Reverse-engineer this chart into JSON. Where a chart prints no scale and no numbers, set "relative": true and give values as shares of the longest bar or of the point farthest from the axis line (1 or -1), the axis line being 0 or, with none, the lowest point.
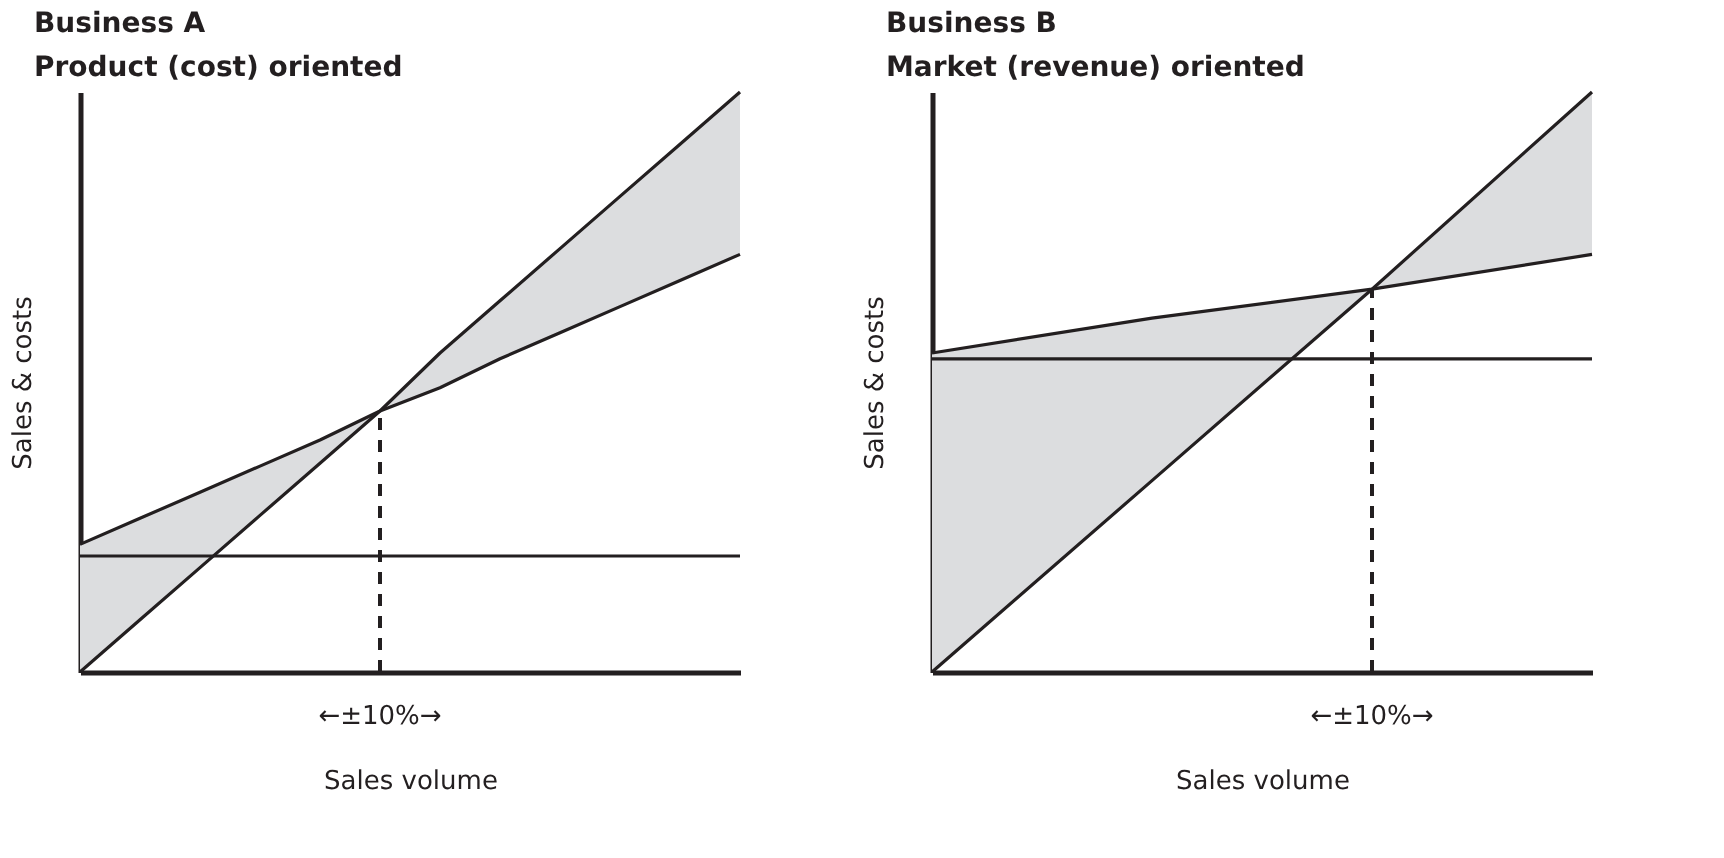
{
  "chart_data": [
    {
      "type": "line",
      "title": "Business A",
      "subtitle": "Product (cost) oriented",
      "xlabel": "Sales volume",
      "ylabel": "Sales & costs",
      "relative": true,
      "tick_labels": false,
      "annotations": [
        "←±10%→"
      ],
      "categories": [
        null,
        null,
        null,
        null,
        null,
        null,
        null,
        null,
        null,
        null,
        null,
        null
      ],
      "series": [
        {
          "color": "#231f20",
          "values": [
            0.22,
            0.265,
            0.31,
            0.355,
            0.4,
            0.45,
            0.49,
            0.54,
            0.585,
            0.63,
            0.675,
            0.72
          ],
          "lower": [
            0,
            0.09,
            0.18,
            0.27,
            0.36,
            0.45,
            0.49,
            0.54,
            0.585,
            0.63,
            0.675,
            0.72
          ],
          "upper": [
            0.22,
            0.265,
            0.31,
            0.355,
            0.4,
            0.45,
            0.55,
            0.64,
            0.73,
            0.82,
            0.91,
            1.0
          ]
        },
        {
          "color": "#231f20",
          "values": [
            0,
            0.09,
            0.18,
            0.27,
            0.36,
            0.45,
            0.55,
            0.64,
            0.73,
            0.82,
            0.91,
            1.0
          ]
        },
        {
          "color": "#231f20",
          "values": [
            0.2,
            0.2,
            0.2,
            0.2,
            0.2,
            0.2,
            0.2,
            0.2,
            0.2,
            0.2,
            0.2,
            0.2
          ]
        }
      ]
    },
    {
      "type": "line",
      "title": "Business B",
      "subtitle": "Market (revenue) oriented",
      "xlabel": "Sales volume",
      "ylabel": "Sales & costs",
      "relative": true,
      "tick_labels": false,
      "annotations": [
        "←±10%→"
      ],
      "categories": [
        null,
        null,
        null,
        null
      ],
      "series": [
        {
          "color": "#231f20",
          "values": [
            0.55,
            0.61,
            0.66,
            0.72
          ],
          "lower": [
            0,
            0.33,
            0.66,
            0.72
          ],
          "upper": [
            0.55,
            0.61,
            0.66,
            1.0
          ]
        },
        {
          "color": "#231f20",
          "values": [
            0,
            0.33,
            0.66,
            1.0
          ]
        },
        {
          "color": "#231f20",
          "values": [
            0.54,
            0.54,
            0.54,
            0.54
          ]
        }
      ]
    }
  ]
}
